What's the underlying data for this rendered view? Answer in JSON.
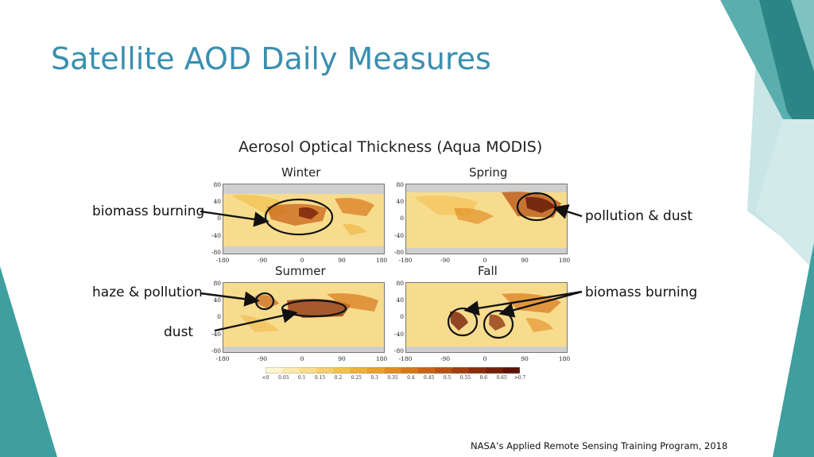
{
  "slide": {
    "title": "Satellite AOD Daily Measures",
    "credit": "NASA’s Applied Remote Sensing Training Program, 2018"
  },
  "figure": {
    "title": "Aerosol Optical Thickness (Aqua MODIS)",
    "panels": [
      {
        "season": "Winter"
      },
      {
        "season": "Spring"
      },
      {
        "season": "Summer"
      },
      {
        "season": "Fall"
      }
    ],
    "lat_ticks": [
      "80",
      "40",
      "0",
      "-40",
      "-80"
    ],
    "lon_ticks": [
      "-180",
      "-90",
      "0",
      "90",
      "180"
    ],
    "colorbar_ticks": [
      "<0",
      "0.05",
      "0.1",
      "0.15",
      "0.2",
      "0.25",
      "0.3",
      "0.35",
      "0.4",
      "0.45",
      "0.5",
      "0.55",
      "0.6",
      "0.65",
      ">0.7"
    ],
    "colorbar_colors": [
      "#fdf5cf",
      "#fbe9ab",
      "#f8dd8c",
      "#f5cf6d",
      "#f1c04f",
      "#eeb13c",
      "#e9a02e",
      "#e18c24",
      "#d7781c",
      "#c96417",
      "#b75113",
      "#a23f0f",
      "#8b2e0c",
      "#761f09",
      "#5e1206"
    ],
    "annotations": {
      "biomass_left": "biomass burning",
      "pollution_dust": "pollution & dust",
      "haze_pollution": "haze & pollution",
      "dust": "dust",
      "biomass_right": "biomass burning"
    }
  },
  "theme": {
    "accent_dark": "#2e8a8a",
    "accent_mid": "#53a9a9",
    "accent_light": "#b9dede",
    "title_color": "#3a8fb0"
  }
}
